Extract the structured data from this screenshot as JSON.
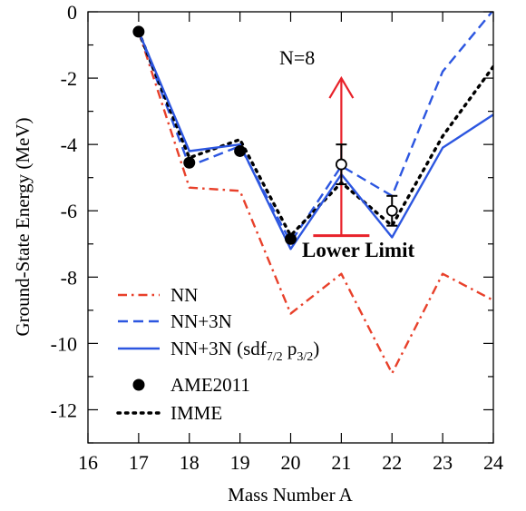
{
  "chart_data": {
    "type": "line",
    "xlabel": "Mass Number A",
    "ylabel": "Ground-State Energy (MeV)",
    "xlim": [
      16,
      24
    ],
    "ylim": [
      -13,
      0
    ],
    "xticks": [
      16,
      17,
      18,
      19,
      20,
      21,
      22,
      23,
      24
    ],
    "yticks": [
      0,
      -2,
      -4,
      -6,
      -8,
      -10,
      -12
    ],
    "grid": false,
    "legend_position": "bottom-left",
    "series": [
      {
        "name": "NN",
        "style": "dash-dot",
        "color": "#e8402a",
        "x": [
          17,
          18,
          19,
          20,
          21,
          22,
          23,
          24
        ],
        "y": [
          -0.6,
          -5.3,
          -5.4,
          -9.1,
          -7.9,
          -10.9,
          -7.9,
          -8.7
        ]
      },
      {
        "name": "NN+3N",
        "style": "dashed",
        "color": "#2c56e0",
        "x": [
          17,
          18,
          19,
          20,
          21,
          22,
          23,
          24
        ],
        "y": [
          -0.6,
          -4.65,
          -4.05,
          -6.95,
          -4.65,
          -5.55,
          -1.8,
          0.05
        ]
      },
      {
        "name": "NN+3N (sdf",
        "name_sub1": "7/2",
        "name_mid": " p",
        "name_sub2": "3/2",
        "name_end": ")",
        "style": "solid",
        "color": "#2c56e0",
        "x": [
          17,
          18,
          19,
          20,
          21,
          22,
          23,
          24
        ],
        "y": [
          -0.6,
          -4.2,
          -4.0,
          -7.15,
          -4.9,
          -6.8,
          -4.1,
          -3.1
        ]
      },
      {
        "name": "IMME",
        "style": "dotted",
        "color": "#000000",
        "x": [
          17,
          18,
          19,
          20,
          21,
          22,
          23,
          24
        ],
        "y": [
          -0.6,
          -4.4,
          -3.85,
          -6.75,
          -5.15,
          -6.45,
          -3.75,
          -1.65
        ]
      }
    ],
    "points": [
      {
        "name": "AME2011",
        "marker": "filled-circle",
        "color": "#000000",
        "x": [
          17,
          18,
          19,
          20
        ],
        "y": [
          -0.6,
          -4.55,
          -4.2,
          -6.85
        ]
      },
      {
        "name": "",
        "marker": "open-circle",
        "color": "#000000",
        "x": [
          21,
          22
        ],
        "y": [
          -4.6,
          -6.0
        ],
        "err_low": [
          -5.2,
          -6.45
        ],
        "err_high": [
          -4.0,
          -5.55
        ]
      }
    ],
    "annotations": {
      "isotone": "N=8",
      "lower_limit": "Lower Limit",
      "arrow_color": "#e8222a",
      "arrow_x": 21,
      "arrow_from_y": -6.75,
      "arrow_to_y": -2.0
    }
  }
}
